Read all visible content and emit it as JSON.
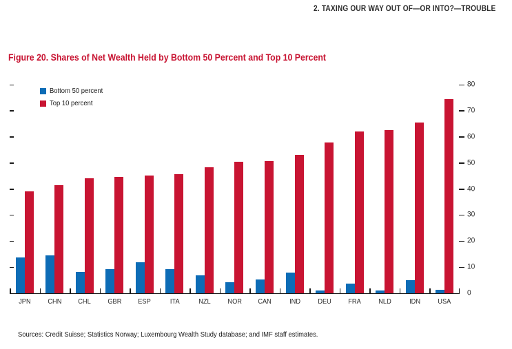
{
  "page": {
    "running_header": "2. TAXING OUR WAY OUT OF—OR INTO?—TROUBLE",
    "figure_title": "Figure 20. Shares of Net Wealth Held by Bottom 50 Percent and Top 10 Percent",
    "sources": "Sources: Credit Suisse; Statistics Norway; Luxembourg Wealth Study database; and IMF staff estimates."
  },
  "colors": {
    "accent_red": "#C81432",
    "series_blue": "#0D6CB6",
    "axis_line": "#1A1A1A",
    "text_dark": "#2B2B2B"
  },
  "chart_data": {
    "type": "bar",
    "title": "Figure 20. Shares of Net Wealth Held by Bottom 50 Percent and Top 10 Percent",
    "categories": [
      "JPN",
      "CHN",
      "CHL",
      "GBR",
      "ESP",
      "ITA",
      "NZL",
      "NOR",
      "CAN",
      "IND",
      "DEU",
      "FRA",
      "NLD",
      "IDN",
      "USA"
    ],
    "series": [
      {
        "name": "Bottom 50 percent",
        "color": "#0D6CB6",
        "values": [
          13.8,
          14.5,
          8.2,
          9.3,
          11.9,
          9.2,
          6.8,
          4.2,
          5.3,
          7.9,
          1.0,
          3.7,
          1.0,
          4.9,
          1.2
        ]
      },
      {
        "name": "Top 10 percent",
        "color": "#C81432",
        "values": [
          39.2,
          41.4,
          44.0,
          44.5,
          45.2,
          45.7,
          48.2,
          50.5,
          50.7,
          53.0,
          57.7,
          62.0,
          62.7,
          65.5,
          74.5
        ]
      }
    ],
    "xlabel": "",
    "ylabel": "",
    "ylim": [
      0,
      80
    ],
    "yticks": [
      0,
      10,
      20,
      30,
      40,
      50,
      60,
      70,
      80
    ],
    "value_axis_side": "right",
    "grid": false,
    "legend_position": "top-left-inside"
  }
}
